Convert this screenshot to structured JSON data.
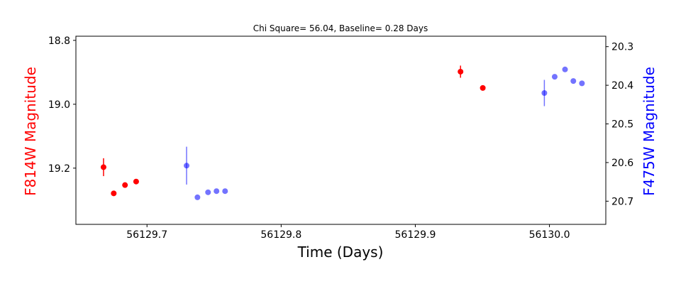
{
  "chart_data": {
    "type": "scatter",
    "title": "Chi Square= 56.04, Baseline= 0.28 Days",
    "xlabel": "Time (Days)",
    "ylabel_left": "F814W Magnitude",
    "ylabel_right": "F475W Magnitude",
    "xlim": [
      56129.647,
      56130.042
    ],
    "ylim_left": [
      18.787,
      19.376
    ],
    "ylim_right": [
      20.273,
      20.76
    ],
    "y_inverted": true,
    "x_ticks": [
      56129.7,
      56129.8,
      56129.9,
      56130.0
    ],
    "x_tick_labels": [
      "56129.7",
      "56129.8",
      "56129.9",
      "56130.0"
    ],
    "y_left_ticks": [
      18.8,
      19.0,
      19.2
    ],
    "y_left_tick_labels": [
      "18.8",
      "19.0",
      "19.2"
    ],
    "y_right_ticks": [
      20.3,
      20.4,
      20.5,
      20.6,
      20.7
    ],
    "y_right_tick_labels": [
      "20.3",
      "20.4",
      "20.5",
      "20.6",
      "20.7"
    ],
    "grid": false,
    "colors": {
      "left_axis_label": "#ff0000",
      "right_axis_label": "#0000ff"
    },
    "series": [
      {
        "axis": "left",
        "color": "#ff0000",
        "opacity": 1.0,
        "x": [
          56129.6676,
          56129.6752,
          56129.6836,
          56129.6919,
          56129.9337,
          56129.9503
        ],
        "y": [
          19.197,
          19.279,
          19.253,
          19.242,
          18.898,
          18.949
        ],
        "yerr": [
          0.028,
          0.0,
          0.0,
          0.0,
          0.019,
          0.0
        ]
      },
      {
        "axis": "right",
        "color": "#0000ff",
        "opacity": 0.55,
        "x": [
          56129.7295,
          56129.7376,
          56129.7455,
          56129.7518,
          56129.7582,
          56129.9962,
          56130.0039,
          56130.0116,
          56130.0178,
          56130.0242
        ],
        "y": [
          20.608,
          20.69,
          20.677,
          20.674,
          20.674,
          20.42,
          20.378,
          20.359,
          20.389,
          20.395
        ],
        "yerr": [
          0.049,
          0.0,
          0.0,
          0.0,
          0.0,
          0.034,
          0.0,
          0.0,
          0.0,
          0.0
        ]
      }
    ]
  }
}
